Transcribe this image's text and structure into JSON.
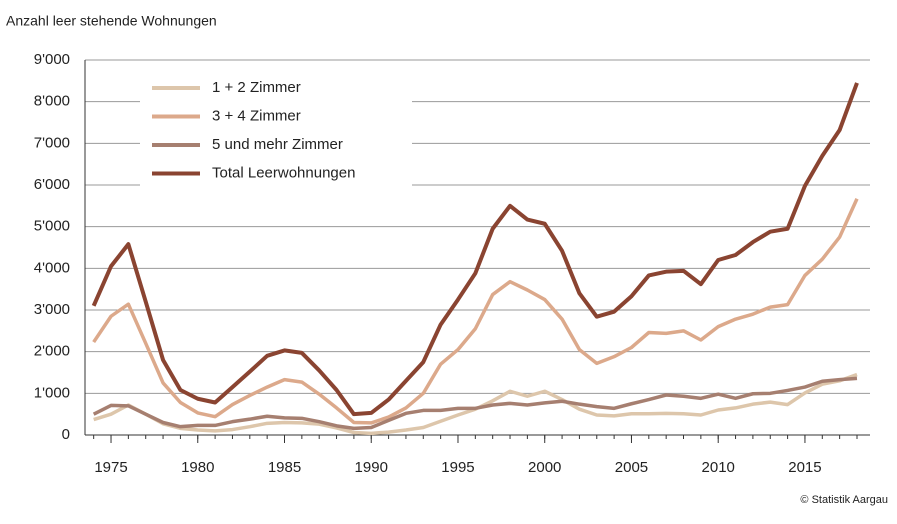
{
  "chart_data": {
    "type": "line",
    "y_axis_title": "Anzahl leer stehende Wohnungen",
    "source": "© Statistik Aargau",
    "x": [
      1974,
      1975,
      1976,
      1977,
      1978,
      1979,
      1980,
      1981,
      1982,
      1983,
      1984,
      1985,
      1986,
      1987,
      1988,
      1989,
      1990,
      1991,
      1992,
      1993,
      1994,
      1995,
      1996,
      1997,
      1998,
      1999,
      2000,
      2001,
      2002,
      2003,
      2004,
      2005,
      2006,
      2007,
      2008,
      2009,
      2010,
      2011,
      2012,
      2013,
      2014,
      2015,
      2016,
      2017,
      2018
    ],
    "series": [
      {
        "name": "1 + 2 Zimmer",
        "color": "#ddc6ab",
        "values": [
          370,
          500,
          720,
          500,
          270,
          160,
          120,
          100,
          130,
          200,
          280,
          300,
          290,
          260,
          170,
          60,
          40,
          70,
          120,
          180,
          330,
          480,
          620,
          820,
          1050,
          930,
          1050,
          850,
          620,
          480,
          460,
          510,
          510,
          520,
          510,
          480,
          600,
          650,
          740,
          790,
          730,
          1010,
          1220,
          1300,
          1450
        ]
      },
      {
        "name": "3 + 4 Zimmer",
        "color": "#dca98b",
        "values": [
          2230,
          2850,
          3140,
          2200,
          1250,
          780,
          530,
          440,
          730,
          950,
          1150,
          1330,
          1270,
          980,
          650,
          300,
          290,
          430,
          650,
          1000,
          1700,
          2050,
          2550,
          3370,
          3680,
          3480,
          3250,
          2780,
          2050,
          1720,
          1880,
          2100,
          2460,
          2440,
          2500,
          2280,
          2600,
          2780,
          2900,
          3070,
          3130,
          3830,
          4220,
          4750,
          5670
        ]
      },
      {
        "name": "5 und mehr Zimmer",
        "color": "#a67f70",
        "values": [
          500,
          710,
          700,
          500,
          300,
          200,
          230,
          230,
          320,
          380,
          450,
          410,
          400,
          320,
          220,
          160,
          180,
          350,
          520,
          590,
          590,
          640,
          640,
          720,
          760,
          720,
          770,
          810,
          740,
          680,
          640,
          750,
          850,
          960,
          930,
          880,
          980,
          880,
          990,
          1000,
          1070,
          1150,
          1290,
          1330,
          1360
        ]
      },
      {
        "name": "Total Leerwohnungen",
        "color": "#8a4431",
        "values": [
          3100,
          4050,
          4580,
          3200,
          1800,
          1080,
          870,
          780,
          1150,
          1520,
          1900,
          2030,
          1970,
          1550,
          1080,
          500,
          530,
          850,
          1300,
          1750,
          2650,
          3250,
          3880,
          4950,
          5500,
          5170,
          5070,
          4420,
          3400,
          2840,
          2960,
          3330,
          3830,
          3920,
          3940,
          3620,
          4200,
          4320,
          4630,
          4880,
          4950,
          5980,
          6700,
          7320,
          8450
        ]
      }
    ],
    "xlim": [
      1973.5,
      2018.75
    ],
    "xticks": [
      1975,
      1980,
      1985,
      1990,
      1995,
      2000,
      2005,
      2010,
      2015
    ],
    "ylim": [
      0,
      9000
    ],
    "yticks": [
      0,
      {
        "value": 1000,
        "label": "1'000"
      },
      {
        "value": 2000,
        "label": "2'000"
      },
      {
        "value": 3000,
        "label": "3'000"
      },
      {
        "value": 4000,
        "label": "4'000"
      },
      {
        "value": 5000,
        "label": "5'000"
      },
      {
        "value": 6000,
        "label": "6'000"
      },
      {
        "value": 7000,
        "label": "7'000"
      },
      {
        "value": 8000,
        "label": "8'000"
      },
      {
        "value": 9000,
        "label": "9'000"
      }
    ],
    "grid": true,
    "legend": "upper left"
  }
}
